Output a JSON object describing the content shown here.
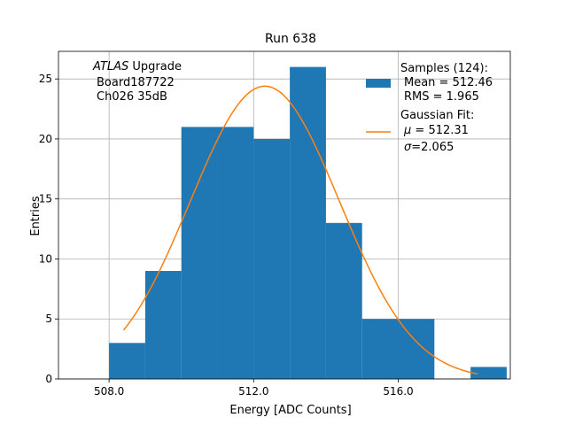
{
  "chart_data": {
    "type": "bar",
    "title": "Run 638",
    "xlabel": "Energy [ADC Counts]",
    "ylabel": "Entries",
    "xlim": [
      506.6,
      519.1
    ],
    "ylim": [
      0,
      27.3
    ],
    "x_ticks": [
      508.0,
      512.0,
      516.0
    ],
    "x_tick_labels": [
      "508.0",
      "512.0",
      "516.0"
    ],
    "y_ticks": [
      0,
      5,
      10,
      15,
      20,
      25
    ],
    "y_tick_labels": [
      "0",
      "5",
      "10",
      "15",
      "20",
      "25"
    ],
    "grid": true,
    "histogram": {
      "name": "Samples (124):",
      "color": "#1f77b4",
      "bins": [
        {
          "x0": 508,
          "x1": 509,
          "count": 3
        },
        {
          "x0": 509,
          "x1": 510,
          "count": 9
        },
        {
          "x0": 510,
          "x1": 511,
          "count": 21
        },
        {
          "x0": 511,
          "x1": 512,
          "count": 21
        },
        {
          "x0": 512,
          "x1": 513,
          "count": 20
        },
        {
          "x0": 513,
          "x1": 514,
          "count": 26
        },
        {
          "x0": 514,
          "x1": 515,
          "count": 13
        },
        {
          "x0": 515,
          "x1": 516,
          "count": 5
        },
        {
          "x0": 516,
          "x1": 517,
          "count": 5
        },
        {
          "x0": 517,
          "x1": 518,
          "count": 0
        },
        {
          "x0": 518,
          "x1": 519,
          "count": 1
        }
      ]
    },
    "fit": {
      "name": "Gaussian Fit:",
      "color": "#ff7f0e",
      "mu": 512.31,
      "sigma": 2.065,
      "amplitude": 24.4,
      "x_range": [
        508.4,
        518.2
      ]
    },
    "annotation": {
      "italic": "ATLAS",
      "rest": " Upgrade",
      "line2": "Board187722",
      "line3": "Ch026 35dB"
    },
    "legend": {
      "position": "top-right",
      "samples_label": "Samples (124):",
      "mean_line": "Mean = 512.46",
      "rms_line": "RMS = 1.965",
      "fit_label": "Gaussian Fit:",
      "mu_symbol": "μ",
      "mu_value": " = 512.31",
      "sigma_symbol": "σ",
      "sigma_value": "=2.065"
    }
  }
}
